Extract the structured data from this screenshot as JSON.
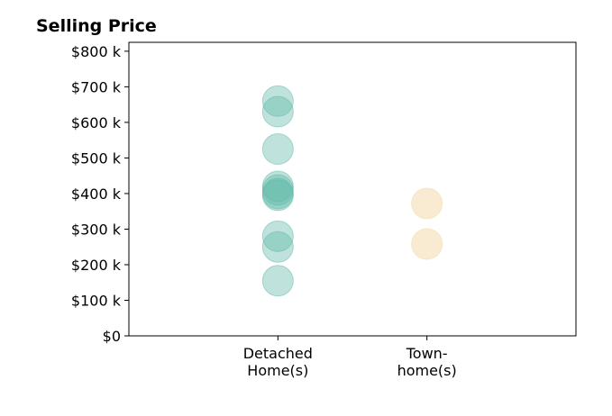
{
  "chart_data": {
    "type": "scatter",
    "title": "Selling Price",
    "xlabel": "",
    "ylabel": "",
    "categories": [
      [
        "Detached",
        "Home(s)"
      ],
      [
        "Town-",
        "home(s)"
      ]
    ],
    "yticks": [
      {
        "value": 0,
        "label": "$0"
      },
      {
        "value": 100000,
        "label": "$100 k"
      },
      {
        "value": 200000,
        "label": "$200 k"
      },
      {
        "value": 300000,
        "label": "$300 k"
      },
      {
        "value": 400000,
        "label": "$400 k"
      },
      {
        "value": 500000,
        "label": "$500 k"
      },
      {
        "value": 600000,
        "label": "$600 k"
      },
      {
        "value": 700000,
        "label": "$700 k"
      },
      {
        "value": 800000,
        "label": "$800 k"
      }
    ],
    "ylim": [
      0,
      825000
    ],
    "xlim": [
      -1,
      2
    ],
    "grid": false,
    "series": [
      {
        "category_index": 0,
        "color": "#5fb8a8",
        "opacity": 0.4,
        "values": [
          660000,
          630000,
          525000,
          420000,
          410000,
          400000,
          395000,
          280000,
          250000,
          155000
        ]
      },
      {
        "category_index": 1,
        "color": "#f5deb3",
        "opacity": 0.6,
        "values": [
          372000,
          258000
        ]
      }
    ]
  }
}
